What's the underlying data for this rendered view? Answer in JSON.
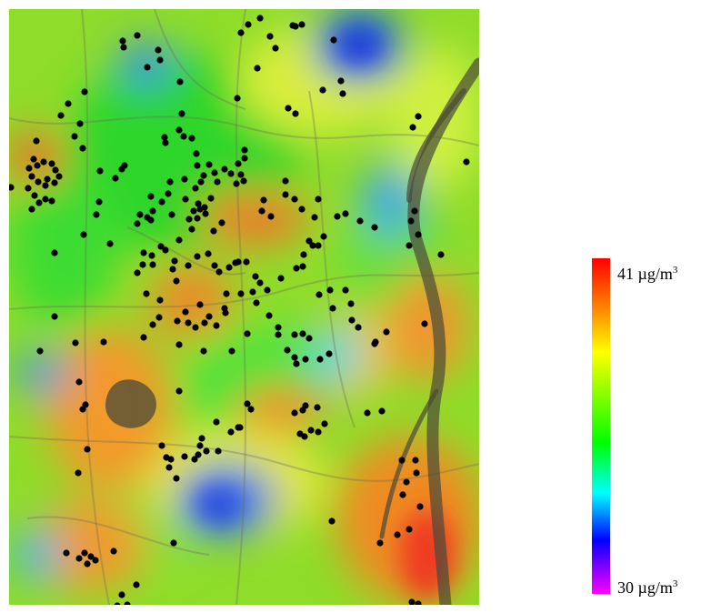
{
  "legend": {
    "max": {
      "value": "41 µg/m",
      "exponent": "3"
    },
    "min": {
      "value": "30 µg/m",
      "exponent": "3"
    },
    "colors": [
      "#ff0000",
      "#ff9900",
      "#ffff00",
      "#00ff00",
      "#00ffff",
      "#0000ff",
      "#ff00ff"
    ]
  }
}
